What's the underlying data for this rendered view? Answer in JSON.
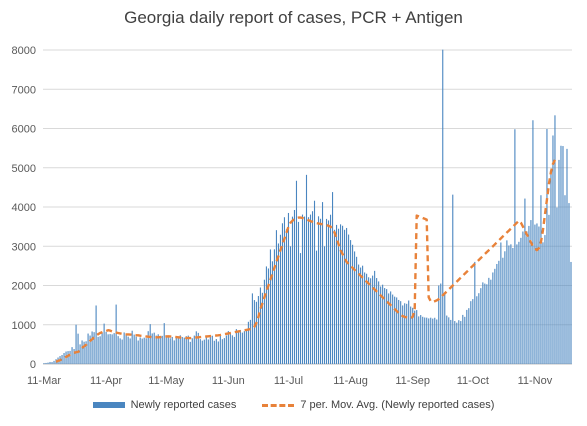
{
  "chart_data": {
    "type": "bar",
    "title": "Georgia daily report of cases, PCR + Antigen",
    "xlabel": "",
    "ylabel": "",
    "ylim": [
      0,
      8000
    ],
    "yticks": [
      0,
      1000,
      2000,
      3000,
      4000,
      5000,
      6000,
      7000,
      8000
    ],
    "xtick_labels": [
      "11-Mar",
      "11-Apr",
      "11-May",
      "11-Jun",
      "11-Jul",
      "11-Aug",
      "11-Sep",
      "11-Oct",
      "11-Nov"
    ],
    "xtick_days": [
      0,
      31,
      61,
      92,
      122,
      153,
      184,
      214,
      245
    ],
    "grid": true,
    "legend_position": "bottom",
    "colors": {
      "bars": "#4a86c0",
      "line": "#e8823a",
      "grid": "#d9d9d9",
      "text": "#595959"
    },
    "series": [
      {
        "name": "Newly reported cases",
        "kind": "bar",
        "start": "2020-03-11",
        "values": [
          22,
          27,
          35,
          52,
          50,
          80,
          123,
          165,
          202,
          229,
          280,
          318,
          329,
          334,
          430,
          382,
          1001,
          773,
          500,
          601,
          568,
          579,
          776,
          725,
          829,
          811,
          1491,
          691,
          706,
          803,
          1029,
          820,
          756,
          763,
          755,
          787,
          1514,
          710,
          653,
          623,
          804,
          773,
          697,
          651,
          848,
          749,
          697,
          598,
          676,
          648,
          671,
          656,
          836,
          1016,
          779,
          799,
          724,
          757,
          700,
          717,
          1042,
          730,
          701,
          656,
          689,
          601,
          670,
          703,
          732,
          688,
          672,
          709,
          723,
          564,
          655,
          724,
          833,
          793,
          634,
          595,
          620,
          677,
          625,
          708,
          720,
          592,
          636,
          574,
          737,
          632,
          660,
          728,
          838,
          798,
          730,
          690,
          889,
          819,
          866,
          799,
          837,
          848,
          1075,
          1124,
          1799,
          1629,
          1585,
          1732,
          1949,
          1814,
          2147,
          2486,
          2434,
          2919,
          2617,
          2921,
          3410,
          3071,
          3293,
          3585,
          3739,
          3432,
          3848,
          2999,
          3754,
          3924,
          4668,
          3620,
          2826,
          3807,
          3757,
          4819,
          3740,
          3807,
          3893,
          4160,
          2888,
          3763,
          3700,
          4125,
          2999,
          3697,
          3658,
          3803,
          4380,
          3419,
          3544,
          3446,
          3558,
          3522,
          3419,
          3466,
          3298,
          3157,
          3037,
          2868,
          2731,
          2534,
          2458,
          2505,
          2332,
          2300,
          2210,
          2184,
          2252,
          2373,
          2190,
          2104,
          1975,
          2021,
          1935,
          1909,
          1798,
          1849,
          1769,
          1716,
          1696,
          1632,
          1601,
          1492,
          1547,
          1533,
          1618,
          1464,
          1431,
          1360,
          1374,
          1213,
          1247,
          1203,
          1185,
          1181,
          1161,
          1180,
          1157,
          1178,
          1134,
          2000,
          2050,
          8009,
          1800,
          1234,
          1189,
          1123,
          4315,
          1094,
          1053,
          1116,
          1094,
          1251,
          1201,
          1378,
          1422,
          1601,
          1653,
          2601,
          1726,
          1804,
          1932,
          2080,
          2049,
          2031,
          2195,
          2148,
          2332,
          2425,
          2548,
          2629,
          3096,
          2707,
          2872,
          3150,
          3020,
          3049,
          2955,
          5981,
          3047,
          3113,
          3214,
          3376,
          4215,
          3377,
          3518,
          3667,
          6210,
          3552,
          3581,
          3503,
          4300,
          3100,
          3284,
          5987,
          3800,
          4858,
          5822,
          6336,
          3988,
          5200,
          5560,
          5553,
          4300,
          5481,
          4100,
          2600
        ]
      },
      {
        "name": "7 per. Mov. Avg. (Newly reported cases)",
        "kind": "line-dashed",
        "start": "2020-03-17",
        "values": [
          58,
          78,
          97,
          124,
          152,
          182,
          210,
          238,
          263,
          285,
          300,
          310,
          340,
          410,
          450,
          490,
          540,
          590,
          630,
          680,
          720,
          760,
          790,
          810,
          830,
          840,
          860,
          850,
          830,
          810,
          800,
          790,
          780,
          770,
          760,
          755,
          755,
          750,
          745,
          740,
          735,
          730,
          720,
          715,
          710,
          700,
          695,
          690,
          685,
          680,
          680,
          680,
          685,
          690,
          695,
          700,
          705,
          700,
          695,
          690,
          685,
          680,
          675,
          670,
          665,
          660,
          660,
          660,
          665,
          670,
          675,
          680,
          685,
          690,
          695,
          700,
          705,
          710,
          715,
          720,
          725,
          730,
          740,
          750,
          760,
          770,
          780,
          790,
          800,
          810,
          820,
          830,
          840,
          850,
          860,
          870,
          880,
          890,
          900,
          950,
          1050,
          1200,
          1400,
          1550,
          1700,
          1850,
          2000,
          2150,
          2300,
          2450,
          2600,
          2750,
          2900,
          3050,
          3200,
          3350,
          3500,
          3600,
          3650,
          3700,
          3720,
          3730,
          3730,
          3720,
          3700,
          3680,
          3660,
          3640,
          3620,
          3600,
          3590,
          3580,
          3570,
          3560,
          3550,
          3540,
          3520,
          3500,
          3450,
          3350,
          3200,
          3050,
          2900,
          2800,
          2700,
          2600,
          2550,
          2500,
          2450,
          2400,
          2350,
          2300,
          2250,
          2200,
          2150,
          2100,
          2050,
          2000,
          1950,
          1900,
          1850,
          1800,
          1750,
          1700,
          1650,
          1600,
          1550,
          1500,
          1450,
          1400,
          1350,
          1300,
          1250,
          1220,
          1200,
          1190,
          1180,
          1170,
          1200,
          1400,
          3780,
          3760,
          3740,
          3720,
          3700,
          3680,
          1700,
          1600,
          1580,
          1600,
          1620,
          1650,
          1700,
          1750,
          1800,
          1850,
          1900,
          1950,
          2000,
          2050,
          2100,
          2150,
          2200,
          2250,
          2300,
          2350,
          2400,
          2450,
          2500,
          2550,
          2600,
          2650,
          2700,
          2750,
          2800,
          2850,
          2900,
          2950,
          3000,
          3050,
          3100,
          3150,
          3200,
          3250,
          3300,
          3350,
          3400,
          3450,
          3500,
          3550,
          3600,
          3650,
          3600,
          3500,
          3400,
          3300,
          3200,
          3100,
          3000,
          2950,
          2900,
          2950,
          3100,
          3400,
          3800,
          4200,
          4600,
          4900,
          5100,
          5200
        ]
      }
    ]
  }
}
